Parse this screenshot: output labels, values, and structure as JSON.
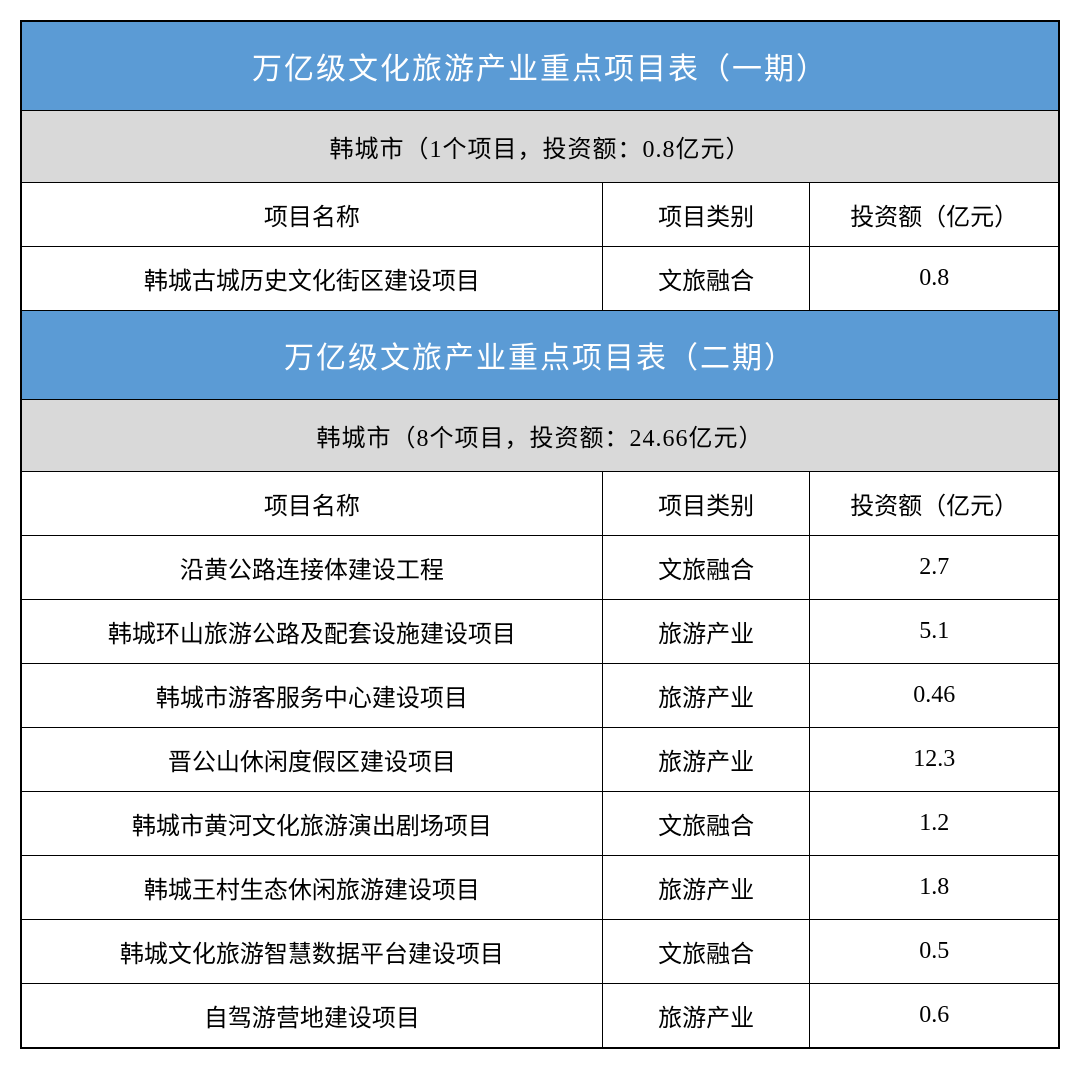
{
  "table": {
    "colors": {
      "title_bg": "#5b9bd5",
      "title_fg": "#ffffff",
      "subtitle_bg": "#d9d9d9",
      "subtitle_fg": "#000000",
      "cell_bg": "#ffffff",
      "cell_fg": "#000000",
      "border": "#000000"
    },
    "column_widths": {
      "name": "56%",
      "category": "20%",
      "investment": "24%"
    },
    "font_size_title": 30,
    "font_size_body": 24,
    "sections": [
      {
        "title": "万亿级文化旅游产业重点项目表（一期）",
        "subtitle": "韩城市（1个项目，投资额：0.8亿元）",
        "columns": [
          "项目名称",
          "项目类别",
          "投资额（亿元）"
        ],
        "rows": [
          [
            "韩城古城历史文化街区建设项目",
            "文旅融合",
            "0.8"
          ]
        ]
      },
      {
        "title": "万亿级文旅产业重点项目表（二期）",
        "subtitle": "韩城市（8个项目，投资额：24.66亿元）",
        "columns": [
          "项目名称",
          "项目类别",
          "投资额（亿元）"
        ],
        "rows": [
          [
            "沿黄公路连接体建设工程",
            "文旅融合",
            "2.7"
          ],
          [
            "韩城环山旅游公路及配套设施建设项目",
            "旅游产业",
            "5.1"
          ],
          [
            "韩城市游客服务中心建设项目",
            "旅游产业",
            "0.46"
          ],
          [
            "晋公山休闲度假区建设项目",
            "旅游产业",
            "12.3"
          ],
          [
            "韩城市黄河文化旅游演出剧场项目",
            "文旅融合",
            "1.2"
          ],
          [
            "韩城王村生态休闲旅游建设项目",
            "旅游产业",
            "1.8"
          ],
          [
            "韩城文化旅游智慧数据平台建设项目",
            "文旅融合",
            "0.5"
          ],
          [
            "自驾游营地建设项目",
            "旅游产业",
            "0.6"
          ]
        ]
      }
    ]
  }
}
